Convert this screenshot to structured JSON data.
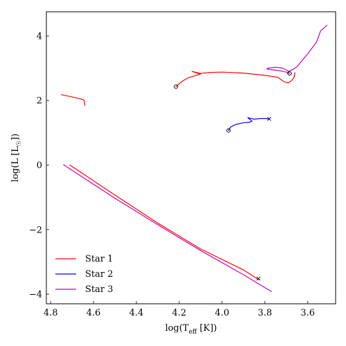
{
  "chart_data": {
    "type": "line",
    "title": "",
    "xlabel_main": "log(T",
    "xlabel_sub": "eff",
    "xlabel_tail": " [K])",
    "ylabel_main": "log(L [L",
    "ylabel_sub": "☉",
    "ylabel_tail": "])",
    "xlim": [
      4.82,
      3.47
    ],
    "ylim": [
      -4.3,
      4.75
    ],
    "x_ticks": [
      4.8,
      4.6,
      4.4,
      4.2,
      4.0,
      3.8,
      3.6
    ],
    "x_tick_labels": [
      "4.8",
      "4.6",
      "4.4",
      "4.2",
      "4.0",
      "3.8",
      "3.6"
    ],
    "y_ticks": [
      -4,
      -2,
      0,
      2,
      4
    ],
    "y_tick_labels": [
      "−4",
      "−2",
      "0",
      "2",
      "4"
    ],
    "grid": false,
    "legend_position": "lower-left",
    "series": [
      {
        "name": "Star 1",
        "color": "#ff0000",
        "segments": [
          [
            [
              4.75,
              2.18
            ],
            [
              4.7,
              2.11
            ],
            [
              4.66,
              2.05
            ],
            [
              4.645,
              2.02
            ],
            [
              4.642,
              1.95
            ],
            [
              4.641,
              1.85
            ]
          ],
          [
            [
              4.215,
              2.43
            ],
            [
              4.19,
              2.58
            ],
            [
              4.16,
              2.7
            ],
            [
              4.12,
              2.78
            ],
            [
              4.1,
              2.82
            ],
            [
              4.14,
              2.9
            ],
            [
              4.1,
              2.84
            ],
            [
              4.05,
              2.87
            ],
            [
              4.0,
              2.88
            ],
            [
              3.9,
              2.85
            ],
            [
              3.8,
              2.78
            ],
            [
              3.74,
              2.72
            ],
            [
              3.71,
              2.58
            ],
            [
              3.69,
              2.55
            ],
            [
              3.675,
              2.62
            ],
            [
              3.663,
              2.73
            ],
            [
              3.66,
              2.86
            ]
          ],
          [
            [
              4.71,
              0.0
            ],
            [
              4.5,
              -0.93
            ],
            [
              4.3,
              -1.8
            ],
            [
              4.1,
              -2.6
            ],
            [
              3.9,
              -3.25
            ],
            [
              3.83,
              -3.55
            ]
          ]
        ]
      },
      {
        "name": "Star 2",
        "color": "#0000ff",
        "segments": [
          [
            [
              3.97,
              1.07
            ],
            [
              3.96,
              1.18
            ],
            [
              3.935,
              1.26
            ],
            [
              3.9,
              1.31
            ],
            [
              3.87,
              1.33
            ],
            [
              3.86,
              1.36
            ],
            [
              3.88,
              1.47
            ],
            [
              3.85,
              1.42
            ],
            [
              3.82,
              1.44
            ],
            [
              3.8,
              1.44
            ],
            [
              3.78,
              1.43
            ]
          ]
        ]
      },
      {
        "name": "Star 3",
        "color": "#bf00bf",
        "segments": [
          [
            [
              3.79,
              3.0
            ],
            [
              3.75,
              3.03
            ],
            [
              3.72,
              3.01
            ],
            [
              3.695,
              2.93
            ],
            [
              3.685,
              2.84
            ],
            [
              3.7,
              2.88
            ],
            [
              3.73,
              2.92
            ],
            [
              3.75,
              2.94
            ],
            [
              3.79,
              2.97
            ]
          ],
          [
            [
              3.69,
              2.9
            ],
            [
              3.67,
              2.96
            ],
            [
              3.65,
              3.05
            ],
            [
              3.6,
              3.45
            ],
            [
              3.56,
              3.8
            ],
            [
              3.54,
              4.16
            ],
            [
              3.51,
              4.33
            ]
          ],
          [
            [
              4.74,
              0.01
            ],
            [
              4.5,
              -1.03
            ],
            [
              4.3,
              -1.85
            ],
            [
              4.1,
              -2.65
            ],
            [
              3.9,
              -3.4
            ],
            [
              3.77,
              -3.92
            ]
          ]
        ]
      }
    ],
    "markers": [
      {
        "symbol": "circle",
        "color": "#000000",
        "x": 4.215,
        "y": 2.43
      },
      {
        "symbol": "circle",
        "color": "#000000",
        "x": 3.97,
        "y": 1.07
      },
      {
        "symbol": "diamond",
        "color": "#000000",
        "x": 3.685,
        "y": 2.84
      },
      {
        "symbol": "cross",
        "color": "#000000",
        "x": 3.78,
        "y": 1.43
      },
      {
        "symbol": "cross",
        "color": "#000000",
        "x": 3.83,
        "y": -3.52
      }
    ]
  }
}
